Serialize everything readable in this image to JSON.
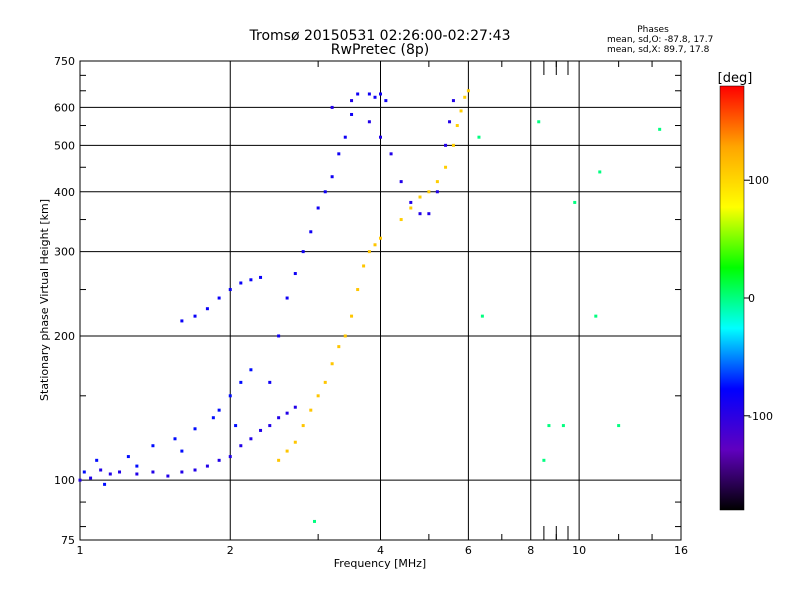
{
  "chart_data": {
    "type": "scatter",
    "title": "Tromsø 20150531 02:26:00-02:27:43",
    "subtitle": "RwPretec (8p)",
    "xlabel": "Frequency [MHz]",
    "ylabel": "Stationary phase Virtual Height [km]",
    "xscale": "log",
    "yscale": "log",
    "xlim": [
      1,
      16
    ],
    "ylim": [
      75,
      750
    ],
    "xticks": [
      1,
      2,
      4,
      6,
      8,
      10,
      16
    ],
    "yticks": [
      75,
      100,
      200,
      300,
      400,
      500,
      600,
      750
    ],
    "xgrid": [
      2,
      4,
      6,
      8,
      10
    ],
    "ygrid": [
      100,
      200,
      300,
      400,
      500,
      600
    ],
    "grid": true,
    "stats": {
      "title": "Phases",
      "line_o": "mean, sd,O: -87.8, 17.7",
      "line_x": "mean, sd,X:  89.7, 17.8"
    },
    "colorbar": {
      "label": "[deg]",
      "range": [
        -180,
        180
      ],
      "ticks": [
        100,
        0,
        -100
      ],
      "colors": [
        "#ff0000",
        "#ffa500",
        "#ffff00",
        "#00ff00",
        "#00ffff",
        "#0000ff",
        "#6000c0",
        "#000000"
      ]
    },
    "series": [
      {
        "group": "low-band-trace",
        "phase": -95,
        "points": [
          [
            1.0,
            100
          ],
          [
            1.05,
            101
          ],
          [
            1.1,
            105
          ],
          [
            1.15,
            103
          ],
          [
            1.2,
            104
          ],
          [
            1.3,
            103
          ],
          [
            1.4,
            104
          ],
          [
            1.5,
            102
          ],
          [
            1.6,
            104
          ],
          [
            1.7,
            105
          ],
          [
            1.8,
            107
          ],
          [
            1.9,
            110
          ],
          [
            2.0,
            112
          ],
          [
            2.1,
            118
          ],
          [
            2.2,
            122
          ],
          [
            2.3,
            127
          ],
          [
            2.4,
            130
          ],
          [
            2.5,
            135
          ],
          [
            2.6,
            138
          ],
          [
            2.7,
            142
          ]
        ]
      },
      {
        "group": "low-band-scatter",
        "phase": -75,
        "points": [
          [
            1.08,
            110
          ],
          [
            1.25,
            112
          ],
          [
            1.4,
            118
          ],
          [
            1.55,
            122
          ],
          [
            1.7,
            128
          ],
          [
            1.85,
            135
          ],
          [
            2.0,
            150
          ],
          [
            2.1,
            160
          ],
          [
            2.2,
            170
          ],
          [
            1.3,
            107
          ],
          [
            1.6,
            115
          ],
          [
            1.9,
            140
          ],
          [
            2.05,
            130
          ],
          [
            1.12,
            98
          ],
          [
            1.02,
            104
          ]
        ]
      },
      {
        "group": "oblique-branch",
        "phase": -82,
        "points": [
          [
            1.6,
            215
          ],
          [
            1.7,
            220
          ],
          [
            1.8,
            228
          ],
          [
            1.9,
            240
          ],
          [
            2.0,
            250
          ],
          [
            2.1,
            258
          ],
          [
            2.2,
            262
          ],
          [
            2.3,
            265
          ]
        ]
      },
      {
        "group": "o-mode-trace",
        "phase": -85,
        "points": [
          [
            2.4,
            160
          ],
          [
            2.5,
            200
          ],
          [
            2.6,
            240
          ],
          [
            2.7,
            270
          ],
          [
            2.8,
            300
          ],
          [
            2.9,
            330
          ],
          [
            3.0,
            370
          ],
          [
            3.1,
            400
          ],
          [
            3.2,
            430
          ],
          [
            3.3,
            480
          ],
          [
            3.4,
            520
          ],
          [
            3.5,
            580
          ],
          [
            3.6,
            640
          ],
          [
            3.8,
            640
          ],
          [
            3.9,
            630
          ],
          [
            4.0,
            640
          ],
          [
            4.1,
            620
          ]
        ]
      },
      {
        "group": "x-mode-lower",
        "phase": 110,
        "points": [
          [
            2.5,
            110
          ],
          [
            2.6,
            115
          ],
          [
            2.7,
            120
          ],
          [
            2.8,
            130
          ],
          [
            2.9,
            140
          ],
          [
            3.0,
            150
          ],
          [
            3.1,
            160
          ],
          [
            3.2,
            175
          ],
          [
            3.3,
            190
          ],
          [
            3.4,
            200
          ],
          [
            3.5,
            220
          ],
          [
            3.6,
            250
          ],
          [
            3.7,
            280
          ],
          [
            3.8,
            300
          ],
          [
            3.9,
            310
          ],
          [
            4.0,
            320
          ]
        ]
      },
      {
        "group": "x-mode-upper",
        "phase": 105,
        "points": [
          [
            4.4,
            350
          ],
          [
            4.6,
            370
          ],
          [
            4.8,
            390
          ],
          [
            5.0,
            400
          ],
          [
            5.2,
            420
          ],
          [
            5.4,
            450
          ],
          [
            5.6,
            500
          ],
          [
            5.7,
            550
          ],
          [
            5.8,
            590
          ],
          [
            5.9,
            630
          ],
          [
            6.0,
            650
          ]
        ]
      },
      {
        "group": "f2-cusp",
        "phase": -95,
        "points": [
          [
            3.2,
            600
          ],
          [
            3.5,
            620
          ],
          [
            3.8,
            560
          ],
          [
            4.0,
            520
          ],
          [
            4.2,
            480
          ],
          [
            4.4,
            420
          ],
          [
            4.6,
            380
          ],
          [
            4.8,
            360
          ],
          [
            5.0,
            360
          ],
          [
            5.2,
            400
          ],
          [
            5.4,
            500
          ],
          [
            5.5,
            560
          ],
          [
            5.6,
            620
          ]
        ]
      },
      {
        "group": "isolated-points",
        "phase": 0,
        "points": [
          [
            6.3,
            520
          ],
          [
            6.4,
            220
          ],
          [
            8.3,
            560
          ],
          [
            8.5,
            110
          ],
          [
            8.7,
            130
          ],
          [
            9.3,
            130
          ],
          [
            10.8,
            220
          ],
          [
            11.0,
            440
          ],
          [
            12.0,
            130
          ],
          [
            14.5,
            540
          ],
          [
            9.8,
            380
          ],
          [
            2.95,
            82
          ]
        ]
      }
    ]
  }
}
